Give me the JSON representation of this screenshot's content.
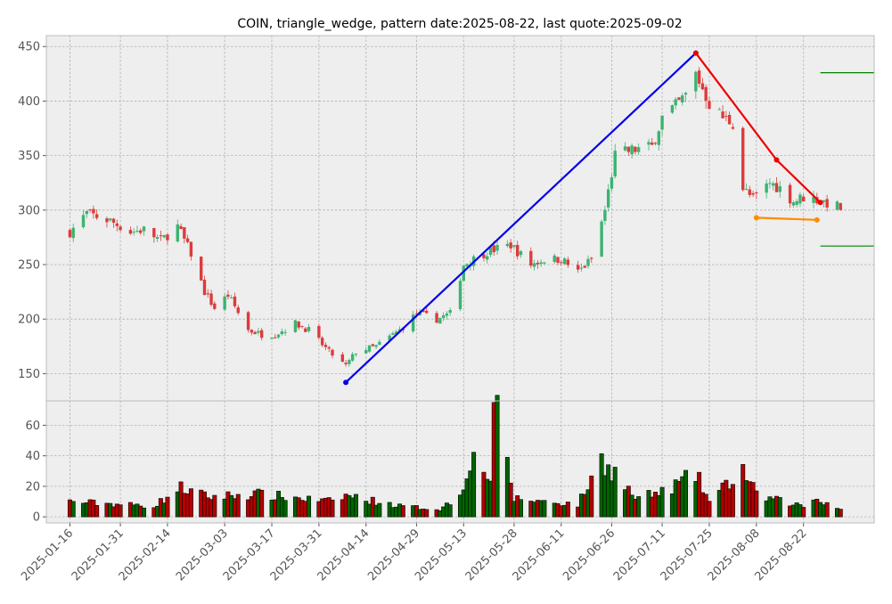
{
  "chart_data": {
    "type": "candlestick",
    "title": "COIN, triangle_wedge, pattern date:2025-08-22, last quote:2025-09-02",
    "grid": true,
    "price_panel": {
      "ylim": [
        125,
        460
      ],
      "yticks": [
        150,
        200,
        250,
        300,
        350,
        400,
        450
      ]
    },
    "volume_panel": {
      "ylim": [
        -4,
        76
      ],
      "yticks": [
        0,
        20,
        40,
        60
      ]
    },
    "x_range": [
      "2025-01-09",
      "2025-09-12"
    ],
    "x_tick_labels": [
      "2025-01-16",
      "2025-01-31",
      "2025-02-14",
      "2025-03-03",
      "2025-03-17",
      "2025-03-31",
      "2025-04-14",
      "2025-04-29",
      "2025-05-13",
      "2025-05-28",
      "2025-06-11",
      "2025-06-26",
      "2025-07-11",
      "2025-07-25",
      "2025-08-08",
      "2025-08-22"
    ],
    "ohlc_keypoints": [
      [
        "2025-01-16",
        280
      ],
      [
        "2025-01-21",
        297
      ],
      [
        "2025-01-28",
        290
      ],
      [
        "2025-02-03",
        280
      ],
      [
        "2025-02-07",
        282
      ],
      [
        "2025-02-12",
        272
      ],
      [
        "2025-02-17",
        285
      ],
      [
        "2025-02-21",
        260
      ],
      [
        "2025-02-25",
        225
      ],
      [
        "2025-02-28",
        210
      ],
      [
        "2025-03-04",
        222
      ],
      [
        "2025-03-10",
        190
      ],
      [
        "2025-03-14",
        186
      ],
      [
        "2025-03-18",
        186
      ],
      [
        "2025-03-24",
        196
      ],
      [
        "2025-03-28",
        190
      ],
      [
        "2025-04-03",
        170
      ],
      [
        "2025-04-08",
        157
      ],
      [
        "2025-04-11",
        170
      ],
      [
        "2025-04-17",
        175
      ],
      [
        "2025-04-24",
        190
      ],
      [
        "2025-04-29",
        205
      ],
      [
        "2025-05-05",
        200
      ],
      [
        "2025-05-09",
        205
      ],
      [
        "2025-05-13",
        250
      ],
      [
        "2025-05-20",
        262
      ],
      [
        "2025-05-27",
        268
      ],
      [
        "2025-06-02",
        250
      ],
      [
        "2025-06-06",
        255
      ],
      [
        "2025-06-11",
        255
      ],
      [
        "2025-06-16",
        243
      ],
      [
        "2025-06-20",
        255
      ],
      [
        "2025-06-24",
        300
      ],
      [
        "2025-06-27",
        350
      ],
      [
        "2025-07-02",
        355
      ],
      [
        "2025-07-08",
        358
      ],
      [
        "2025-07-11",
        385
      ],
      [
        "2025-07-15",
        395
      ],
      [
        "2025-07-18",
        405
      ],
      [
        "2025-07-21",
        425
      ],
      [
        "2025-07-25",
        398
      ],
      [
        "2025-07-29",
        385
      ],
      [
        "2025-08-01",
        380
      ],
      [
        "2025-08-04",
        320
      ],
      [
        "2025-08-07",
        310
      ],
      [
        "2025-08-12",
        325
      ],
      [
        "2025-08-15",
        320
      ],
      [
        "2025-08-19",
        308
      ],
      [
        "2025-08-22",
        312
      ],
      [
        "2025-08-26",
        310
      ],
      [
        "2025-09-02",
        302
      ]
    ],
    "volume_keypoints": [
      [
        "2025-01-16",
        10
      ],
      [
        "2025-02-10",
        7
      ],
      [
        "2025-02-18",
        19
      ],
      [
        "2025-02-26",
        13
      ],
      [
        "2025-03-12",
        15
      ],
      [
        "2025-04-04",
        10
      ],
      [
        "2025-04-08",
        14
      ],
      [
        "2025-04-24",
        7
      ],
      [
        "2025-05-06",
        5
      ],
      [
        "2025-05-12",
        14
      ],
      [
        "2025-05-15",
        39
      ],
      [
        "2025-05-21",
        26
      ],
      [
        "2025-05-22",
        75
      ],
      [
        "2025-05-28",
        12
      ],
      [
        "2025-06-16",
        8
      ],
      [
        "2025-06-23",
        37
      ],
      [
        "2025-06-27",
        29
      ],
      [
        "2025-07-03",
        12
      ],
      [
        "2025-07-11",
        16
      ],
      [
        "2025-07-21",
        28
      ],
      [
        "2025-07-25",
        10
      ],
      [
        "2025-08-04",
        31
      ],
      [
        "2025-08-08",
        14
      ],
      [
        "2025-08-22",
        7
      ],
      [
        "2025-08-26",
        12
      ],
      [
        "2025-09-02",
        5
      ]
    ],
    "pattern_lines": [
      {
        "color": "#0000ee",
        "points": [
          [
            "2025-04-08",
            142
          ],
          [
            "2025-07-21",
            444
          ]
        ]
      },
      {
        "color": "#ee0000",
        "points": [
          [
            "2025-07-21",
            444
          ],
          [
            "2025-08-14",
            346
          ],
          [
            "2025-08-27",
            307
          ]
        ]
      },
      {
        "color": "#ff8c00",
        "points": [
          [
            "2025-08-08",
            293
          ],
          [
            "2025-08-26",
            291
          ]
        ]
      }
    ],
    "level_lines": [
      {
        "color": "#008000",
        "y": 426,
        "x0": "2025-08-27",
        "x1": "2025-09-12"
      },
      {
        "color": "#008000",
        "y": 267,
        "x0": "2025-08-27",
        "x1": "2025-09-12"
      }
    ],
    "colors": {
      "up": "#3cb371",
      "down": "#dc3c3c",
      "vol_up": "#006400",
      "vol_down": "#b40000",
      "axes_bg": "#eeeeee",
      "grid": "#b0b0b0",
      "spine": "#bcbcbc"
    }
  }
}
